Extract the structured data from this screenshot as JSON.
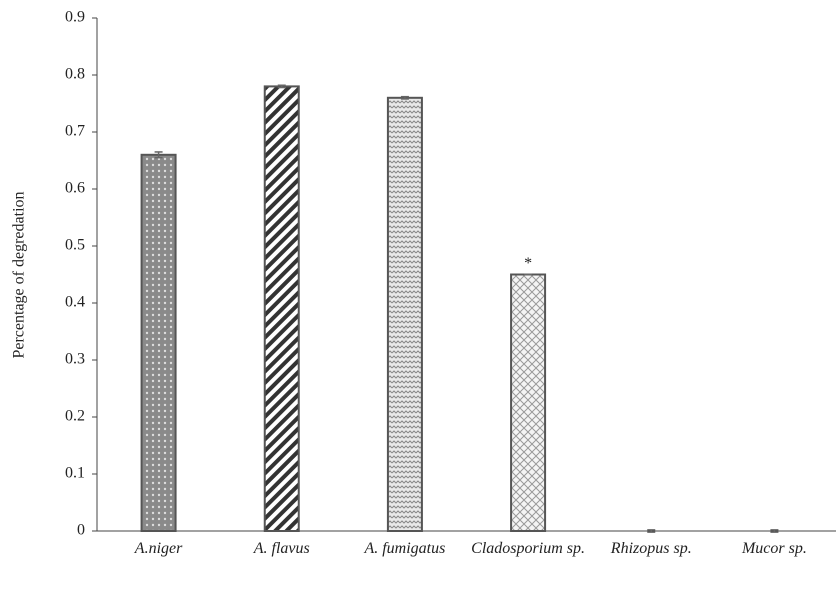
{
  "chart_data": {
    "type": "bar",
    "ylabel": "Percentage of degredation",
    "categories": [
      "A.niger",
      "A. flavus",
      "A. fumigatus",
      "Cladosporium sp.",
      "Rhizopus sp.",
      "Mucor sp."
    ],
    "values": [
      0.66,
      0.78,
      0.76,
      0.45,
      0,
      0
    ],
    "errors": [
      0.005,
      0.002,
      0.002,
      0,
      0.002,
      0.002
    ],
    "color": "#555555",
    "annotations": [
      {
        "text": "*",
        "category": "Cladosporium sp."
      }
    ],
    "ylim": [
      0,
      0.9
    ],
    "yticks": [
      0,
      0.1,
      0.2,
      0.3,
      0.4,
      0.5,
      0.6,
      0.7,
      0.8,
      0.9
    ],
    "grid": false
  }
}
